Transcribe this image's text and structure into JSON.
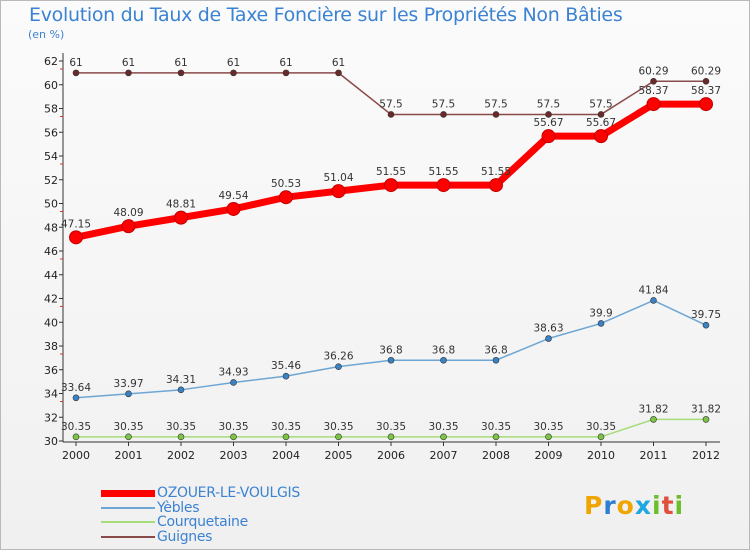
{
  "header": {
    "title": "Evolution du Taux de Taxe Foncière sur les Propriétés Non Bâties",
    "unit": "(en %)"
  },
  "logo": {
    "letters": [
      "P",
      "r",
      "o",
      "x",
      "i",
      "t",
      "i"
    ],
    "colors": [
      "#f0a500",
      "#2f7fd1",
      "#f0a500",
      "#1ea7e0",
      "#6cbf2a",
      "#e0503c",
      "#6cbf2a"
    ]
  },
  "chart_data": {
    "type": "line",
    "title": "Evolution du Taux de Taxe Foncière sur les Propriétés Non Bâties",
    "ylabel": "(en %)",
    "xlabel": "",
    "categories": [
      "2000",
      "2001",
      "2002",
      "2003",
      "2004",
      "2005",
      "2006",
      "2007",
      "2008",
      "2009",
      "2010",
      "2011",
      "2012"
    ],
    "ylim": [
      30,
      62
    ],
    "yticks": [
      30,
      32,
      34,
      36,
      38,
      40,
      42,
      44,
      46,
      48,
      50,
      52,
      54,
      56,
      58,
      60,
      62
    ],
    "grid": false,
    "legend_position": "bottom-left",
    "series": [
      {
        "name": "OZOUER-LE-VOULGIS",
        "color": "#ff0000",
        "marker": "#e00000",
        "width": "heavy",
        "values": [
          47.15,
          48.09,
          48.81,
          49.54,
          50.53,
          51.04,
          51.55,
          51.55,
          51.55,
          55.67,
          55.67,
          58.37,
          58.37
        ],
        "labels": [
          "47.15",
          "48.09",
          "48.81",
          "49.54",
          "50.53",
          "51.04",
          "51.55",
          "51.55",
          "51.55",
          "55.67",
          "55.67",
          "58.37",
          "58.37"
        ]
      },
      {
        "name": "Yèbles",
        "color": "#6da6d4",
        "marker": "#3b82c4",
        "width": "thin",
        "values": [
          33.64,
          33.97,
          34.31,
          34.93,
          35.46,
          36.26,
          36.8,
          36.8,
          36.8,
          38.63,
          39.9,
          41.84,
          39.75
        ],
        "labels": [
          "33.64",
          "33.97",
          "34.31",
          "34.93",
          "35.46",
          "36.26",
          "36.8",
          "36.8",
          "36.8",
          "38.63",
          "39.9",
          "41.84",
          "39.75"
        ]
      },
      {
        "name": "Courquetaine",
        "color": "#a6dc7a",
        "marker": "#7cc443",
        "width": "thin",
        "values": [
          30.35,
          30.35,
          30.35,
          30.35,
          30.35,
          30.35,
          30.35,
          30.35,
          30.35,
          30.35,
          30.35,
          31.82,
          31.82
        ],
        "labels": [
          "30.35",
          "30.35",
          "30.35",
          "30.35",
          "30.35",
          "30.35",
          "30.35",
          "30.35",
          "30.35",
          "30.35",
          "30.35",
          "31.82",
          "31.82"
        ]
      },
      {
        "name": "Guignes",
        "color": "#8b4a4a",
        "marker": "#6b2a2a",
        "width": "thin",
        "values": [
          61,
          61,
          61,
          61,
          61,
          61,
          57.5,
          57.5,
          57.5,
          57.5,
          57.5,
          60.29,
          60.29
        ],
        "labels": [
          "61",
          "61",
          "61",
          "61",
          "61",
          "61",
          "57.5",
          "57.5",
          "57.5",
          "57.5",
          "57.5",
          "60.29",
          "60.29"
        ]
      }
    ]
  }
}
